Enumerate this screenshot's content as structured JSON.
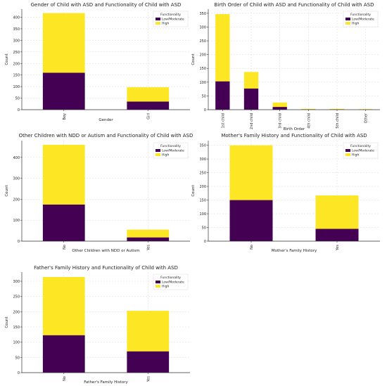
{
  "colors": {
    "low": "#440154",
    "high": "#fde725",
    "grid": "#d9d9d9",
    "axis": "#333333",
    "text": "#222222"
  },
  "legend_title": "Functionality",
  "legend_labels": [
    "Low/Moderate",
    "High"
  ],
  "chart_data": [
    {
      "type": "bar",
      "stacked": true,
      "title": "Gender of Child with ASD and Functionality of Child with ASD",
      "xlabel": "Gender",
      "ylabel": "Count",
      "categories": [
        "Boy",
        "Girl"
      ],
      "series": [
        {
          "name": "Low/Moderate",
          "values": [
            160,
            35
          ]
        },
        {
          "name": "High",
          "values": [
            258,
            62
          ]
        }
      ],
      "ylim": [
        0,
        435
      ],
      "yticks": [
        0,
        50,
        100,
        150,
        200,
        250,
        300,
        350,
        400
      ],
      "grid": true,
      "legend": "top-right"
    },
    {
      "type": "bar",
      "stacked": true,
      "title": "Birth Order of Child with ASD and Functionality of Child with ASD",
      "xlabel": "Birth Order",
      "ylabel": "Count",
      "categories": [
        "1st child",
        "2nd child",
        "3rd child",
        "4th child",
        "5th child",
        "Other"
      ],
      "series": [
        {
          "name": "Low/Moderate",
          "values": [
            103,
            77,
            10,
            1,
            1,
            0
          ]
        },
        {
          "name": "High",
          "values": [
            244,
            60,
            16,
            2,
            2,
            2
          ]
        }
      ],
      "ylim": [
        0,
        365
      ],
      "yticks": [
        0,
        50,
        100,
        150,
        200,
        250,
        300,
        350
      ],
      "grid": true,
      "legend": "top-right"
    },
    {
      "type": "bar",
      "stacked": true,
      "title": "Other Children with NDD or Autism and Functionality of Child with ASD",
      "xlabel": "Other Children with NDD or Autism",
      "ylabel": "Count",
      "categories": [
        "No",
        "Yes"
      ],
      "series": [
        {
          "name": "Low/Moderate",
          "values": [
            175,
            18
          ]
        },
        {
          "name": "High",
          "values": [
            285,
            37
          ]
        }
      ],
      "ylim": [
        0,
        480
      ],
      "yticks": [
        0,
        100,
        200,
        300,
        400
      ],
      "grid": true,
      "legend": "top-right"
    },
    {
      "type": "bar",
      "stacked": true,
      "title": "Mother's Family History and Functionality of Child with ASD",
      "xlabel": "Mother's Family History",
      "ylabel": "Count",
      "categories": [
        "No",
        "Yes"
      ],
      "series": [
        {
          "name": "Low/Moderate",
          "values": [
            150,
            45
          ]
        },
        {
          "name": "High",
          "values": [
            200,
            122
          ]
        }
      ],
      "ylim": [
        0,
        367
      ],
      "yticks": [
        0,
        50,
        100,
        150,
        200,
        250,
        300,
        350
      ],
      "grid": true,
      "legend": "top-right"
    },
    {
      "type": "bar",
      "stacked": true,
      "title": "Father's Family History and Functionality of Child with ASD",
      "xlabel": "Father's Family History",
      "ylabel": "Count",
      "categories": [
        "No",
        "Yes"
      ],
      "series": [
        {
          "name": "Low/Moderate",
          "values": [
            123,
            70
          ]
        },
        {
          "name": "High",
          "values": [
            191,
            133
          ]
        }
      ],
      "ylim": [
        0,
        330
      ],
      "yticks": [
        0,
        50,
        100,
        150,
        200,
        250,
        300
      ],
      "grid": true,
      "legend": "top-right"
    }
  ]
}
